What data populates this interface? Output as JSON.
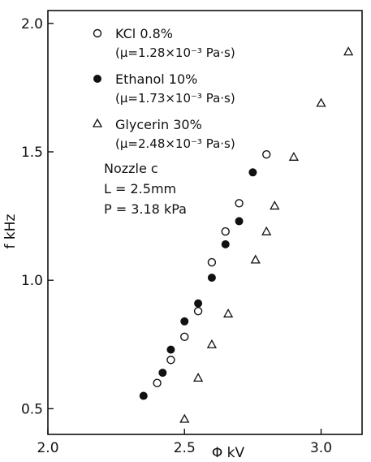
{
  "chart_data": {
    "type": "scatter",
    "title": "",
    "xlabel": "Φ  kV",
    "ylabel": "f  kHz",
    "xlim": [
      2.0,
      3.15
    ],
    "ylim": [
      0.4,
      2.05
    ],
    "xticks": [
      2.0,
      2.5,
      3.0
    ],
    "xtick_labels": [
      "2.0",
      "2.5",
      "3.0"
    ],
    "yticks": [
      0.5,
      1.0,
      1.5,
      2.0
    ],
    "ytick_labels": [
      "0.5",
      "1.0",
      "1.5",
      "2.0"
    ],
    "grid": false,
    "legend_position": "top-left",
    "series": [
      {
        "name": "KCl 0.8%",
        "detail": "(μ=1.28×10⁻³ Pa·s)",
        "marker": "open-circle",
        "x": [
          2.4,
          2.45,
          2.5,
          2.55,
          2.6,
          2.65,
          2.7,
          2.8
        ],
        "y": [
          0.6,
          0.69,
          0.78,
          0.88,
          1.07,
          1.19,
          1.3,
          1.49
        ]
      },
      {
        "name": "Ethanol 10%",
        "detail": "(μ=1.73×10⁻³ Pa·s)",
        "marker": "filled-circle",
        "x": [
          2.35,
          2.42,
          2.45,
          2.5,
          2.55,
          2.6,
          2.65,
          2.7,
          2.75
        ],
        "y": [
          0.55,
          0.64,
          0.73,
          0.84,
          0.91,
          1.01,
          1.14,
          1.23,
          1.42
        ]
      },
      {
        "name": "Glycerin 30%",
        "detail": "(μ=2.48×10⁻³ Pa·s)",
        "marker": "open-triangle",
        "x": [
          2.5,
          2.55,
          2.6,
          2.66,
          2.76,
          2.8,
          2.83,
          2.9,
          3.0,
          3.1
        ],
        "y": [
          0.46,
          0.62,
          0.75,
          0.87,
          1.08,
          1.19,
          1.29,
          1.48,
          1.69,
          1.89
        ]
      }
    ],
    "annotations": [
      "Nozzle c",
      "L = 2.5mm",
      "P = 3.18 kPa"
    ]
  }
}
